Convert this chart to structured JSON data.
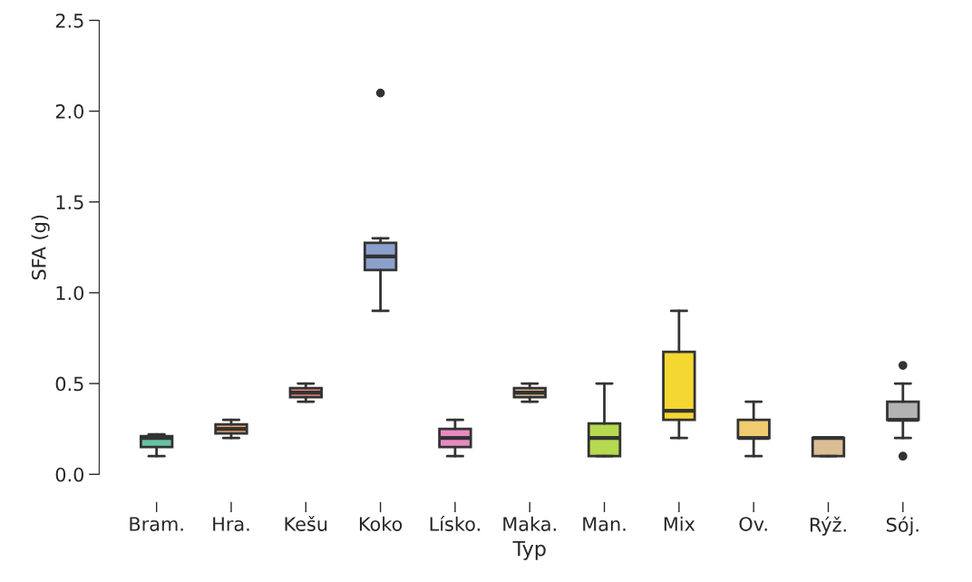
{
  "chart_data": {
    "type": "box",
    "xlabel": "Typ",
    "ylabel": "SFA (g)",
    "categories": [
      "Bram.",
      "Hra.",
      "Kešu",
      "Koko",
      "Lísko.",
      "Maka.",
      "Man.",
      "Mix",
      "Ov.",
      "Rýž.",
      "Sój."
    ],
    "colors": [
      "#66c2a5",
      "#e8a26c",
      "#e8857a",
      "#8da0cb",
      "#e78ac3",
      "#d8b48a",
      "#b5d94f",
      "#f5d732",
      "#f0cb70",
      "#dcbe94",
      "#b3b3b3"
    ],
    "boxes": [
      {
        "low": 0.1,
        "q1": 0.15,
        "median": 0.2,
        "q3": 0.21,
        "high": 0.22
      },
      {
        "low": 0.2,
        "q1": 0.225,
        "median": 0.25,
        "q3": 0.275,
        "high": 0.3
      },
      {
        "low": 0.4,
        "q1": 0.425,
        "median": 0.45,
        "q3": 0.475,
        "high": 0.5
      },
      {
        "low": 0.9,
        "q1": 1.125,
        "median": 1.2,
        "q3": 1.275,
        "high": 1.3,
        "outliers": [
          2.1
        ]
      },
      {
        "low": 0.1,
        "q1": 0.15,
        "median": 0.2,
        "q3": 0.25,
        "high": 0.3
      },
      {
        "low": 0.4,
        "q1": 0.425,
        "median": 0.45,
        "q3": 0.475,
        "high": 0.5
      },
      {
        "low": 0.1,
        "q1": 0.1,
        "median": 0.2,
        "q3": 0.28,
        "high": 0.5
      },
      {
        "low": 0.2,
        "q1": 0.3,
        "median": 0.35,
        "q3": 0.675,
        "high": 0.9
      },
      {
        "low": 0.1,
        "q1": 0.2,
        "median": 0.2,
        "q3": 0.3,
        "high": 0.4
      },
      {
        "low": 0.1,
        "q1": 0.1,
        "median": 0.2,
        "q3": 0.2,
        "high": 0.2
      },
      {
        "low": 0.2,
        "q1": 0.3,
        "median": 0.3,
        "q3": 0.4,
        "high": 0.5,
        "outliers": [
          0.6,
          0.1
        ]
      }
    ],
    "ylim": [
      0,
      2.5
    ],
    "yticks": [
      {
        "value": 0,
        "label": "0.0"
      },
      0.5,
      {
        "value": 1,
        "label": "1.0"
      },
      1.5,
      {
        "value": 2,
        "label": "2.0"
      },
      2.5
    ]
  }
}
